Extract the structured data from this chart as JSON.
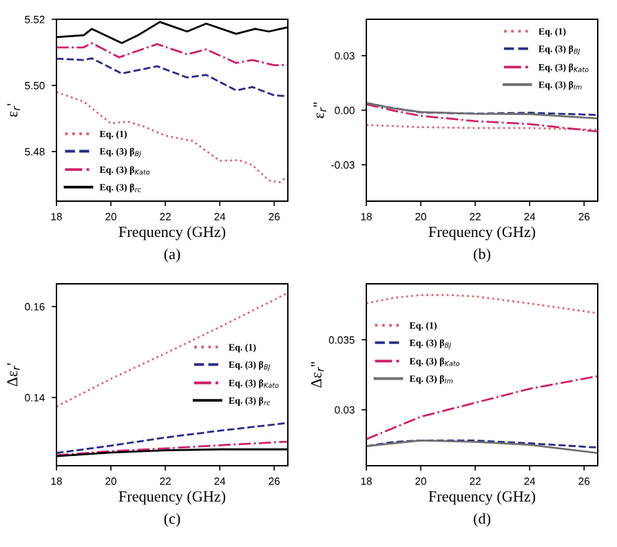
{
  "chart_data": [
    {
      "type": "line",
      "xlabel": "Frequency (GHz)",
      "ylabel": "ε$_{r}$'",
      "annotations": [
        "(a)"
      ],
      "xlim": [
        18,
        26.5
      ],
      "xticks": [
        18,
        20,
        22,
        24,
        26
      ],
      "ylim": [
        5.465,
        5.52
      ],
      "yticks": [
        5.48,
        {
          "value": 5.5,
          "label": "5.50"
        },
        5.52
      ],
      "legend": "bottom left",
      "grid": false,
      "series": [
        {
          "name": "Eq. (1)",
          "color": "#e06070",
          "line_style": "dotted",
          "x": [
            18,
            19,
            20,
            20.6,
            21.2,
            22,
            23,
            24,
            24.7,
            25.2,
            25.8,
            26.2,
            26.5
          ],
          "values": [
            5.498,
            5.4951,
            5.4885,
            5.4891,
            5.4876,
            5.4848,
            5.4832,
            5.4772,
            5.4774,
            5.4759,
            5.4713,
            5.4707,
            5.4726
          ]
        },
        {
          "name": "Eq. (3) β$_{BJ}$",
          "color": "#2b2b8c",
          "line_style": "dashed",
          "x": [
            18,
            19,
            19.3,
            20.4,
            21.7,
            22.8,
            23.5,
            24.6,
            25.2,
            26,
            26.5
          ],
          "values": [
            5.5081,
            5.5077,
            5.5082,
            5.5036,
            5.5058,
            5.5024,
            5.5032,
            5.4985,
            5.4995,
            5.497,
            5.4967
          ]
        },
        {
          "name": "Eq. (3) β$_{Kato}$",
          "color": "#d0206a",
          "line_style": "dashdot",
          "x": [
            18,
            19,
            19.3,
            20.3,
            21.7,
            22.8,
            23.5,
            24.6,
            25.2,
            26,
            26.5
          ],
          "values": [
            5.5115,
            5.5115,
            5.5128,
            5.5085,
            5.5125,
            5.5094,
            5.5109,
            5.5068,
            5.5077,
            5.5061,
            5.5062
          ]
        },
        {
          "name": "Eq. (3) β$_{rc}$",
          "color": "#000000",
          "line_style": "solid",
          "x": [
            18,
            19,
            19.3,
            20.4,
            21,
            21.8,
            22.8,
            23.5,
            24.6,
            25.3,
            25.8,
            26.5
          ],
          "values": [
            5.5146,
            5.5152,
            5.5171,
            5.5128,
            5.5152,
            5.5192,
            5.5163,
            5.5187,
            5.5156,
            5.5171,
            5.5163,
            5.5176
          ]
        }
      ]
    },
    {
      "type": "line",
      "xlabel": "Frequency (GHz)",
      "ylabel": "ε$_{r}$''",
      "annotations": [
        "(b)"
      ],
      "xlim": [
        18,
        26.5
      ],
      "xticks": [
        18,
        20,
        22,
        24,
        26
      ],
      "ylim": [
        -0.05,
        0.05
      ],
      "yticks": [
        {
          "value": -0.03,
          "label": "-0.03"
        },
        {
          "value": 0,
          "label": "0.00"
        },
        {
          "value": 0.03,
          "label": "0.03"
        }
      ],
      "legend": "top right",
      "grid": false,
      "series": [
        {
          "name": "Eq. (1)",
          "color": "#e06070",
          "line_style": "dotted",
          "x": [
            18,
            20,
            22,
            24,
            26.5
          ],
          "values": [
            -0.0081,
            -0.0093,
            -0.0098,
            -0.0098,
            -0.0107
          ]
        },
        {
          "name": "Eq. (3) β$_{BJ}$",
          "color": "#2b2b8c",
          "line_style": "dashed",
          "x": [
            18,
            19,
            20,
            22,
            24,
            26.5
          ],
          "values": [
            0.0038,
            0.0012,
            -0.0012,
            -0.0019,
            -0.0014,
            -0.0026
          ]
        },
        {
          "name": "Eq. (3) β$_{Kato}$",
          "color": "#d0206a",
          "line_style": "dashdot",
          "x": [
            18,
            19,
            20,
            22,
            24,
            26.5
          ],
          "values": [
            0.0033,
            -0.0002,
            -0.0031,
            -0.006,
            -0.0076,
            -0.0117
          ]
        },
        {
          "name": "Eq. (3) β$_{Im}$",
          "color": "#707070",
          "line_style": "solid",
          "x": [
            18,
            19,
            20,
            22,
            24,
            26.5
          ],
          "values": [
            0.004,
            0.001,
            -0.001,
            -0.0019,
            -0.0021,
            -0.0045
          ]
        }
      ]
    },
    {
      "type": "line",
      "xlabel": "Frequency (GHz)",
      "ylabel": "Δε$_{r}$'",
      "annotations": [
        "(c)"
      ],
      "xlim": [
        18,
        26.5
      ],
      "xticks": [
        18,
        20,
        22,
        24,
        26
      ],
      "ylim": [
        0.125,
        0.165
      ],
      "yticks": [
        0.14,
        0.16
      ],
      "legend": "right",
      "grid": false,
      "series": [
        {
          "name": "Eq. (1)",
          "color": "#e06070",
          "line_style": "dotted",
          "x": [
            18,
            20,
            22,
            24,
            26.5
          ],
          "values": [
            0.138,
            0.1441,
            0.1497,
            0.1555,
            0.163
          ]
        },
        {
          "name": "Eq. (3) β$_{BJ}$",
          "color": "#2b2b8c",
          "line_style": "dashed",
          "x": [
            18,
            20,
            22,
            24,
            26.5
          ],
          "values": [
            0.1278,
            0.1294,
            0.1312,
            0.1327,
            0.1344
          ]
        },
        {
          "name": "Eq. (3) β$_{Kato}$",
          "color": "#d0206a",
          "line_style": "dashdot",
          "x": [
            18,
            20,
            22,
            24,
            26.5
          ],
          "values": [
            0.1273,
            0.1282,
            0.1288,
            0.1295,
            0.1303
          ]
        },
        {
          "name": "Eq. (3) β$_{rc}$",
          "color": "#000000",
          "line_style": "solid",
          "x": [
            18,
            20,
            22,
            24,
            26.5
          ],
          "values": [
            0.1271,
            0.1279,
            0.1284,
            0.1286,
            0.1286
          ]
        }
      ]
    },
    {
      "type": "line",
      "xlabel": "Frequency (GHz)",
      "ylabel": "Δε$_{r}$''",
      "annotations": [
        "(d)"
      ],
      "xlim": [
        18,
        26.5
      ],
      "xticks": [
        18,
        20,
        22,
        24,
        26
      ],
      "ylim": [
        0.026,
        0.039
      ],
      "yticks": [
        0.03,
        0.035
      ],
      "legend": "top left",
      "grid": false,
      "series": [
        {
          "name": "Eq. (1)",
          "color": "#e06070",
          "line_style": "dotted",
          "x": [
            18,
            19,
            20,
            21,
            22,
            24,
            26.5
          ],
          "values": [
            0.0376,
            0.038,
            0.0382,
            0.0382,
            0.0381,
            0.0376,
            0.0369
          ]
        },
        {
          "name": "Eq. (3) β$_{BJ}$",
          "color": "#2b2b8c",
          "line_style": "dashed",
          "x": [
            18,
            19,
            20,
            22,
            24,
            26.5
          ],
          "values": [
            0.0274,
            0.0277,
            0.0278,
            0.0278,
            0.0276,
            0.0273
          ]
        },
        {
          "name": "Eq. (3) β$_{Kato}$",
          "color": "#d0206a",
          "line_style": "dashdot",
          "x": [
            18,
            20,
            22,
            24,
            26.5
          ],
          "values": [
            0.0279,
            0.0295,
            0.0305,
            0.0315,
            0.0324
          ]
        },
        {
          "name": "Eq. (3) β$_{Im}$",
          "color": "#707070",
          "line_style": "solid",
          "x": [
            18,
            20,
            22,
            24,
            26.5
          ],
          "values": [
            0.0274,
            0.0278,
            0.0277,
            0.0275,
            0.0269
          ]
        }
      ]
    }
  ]
}
